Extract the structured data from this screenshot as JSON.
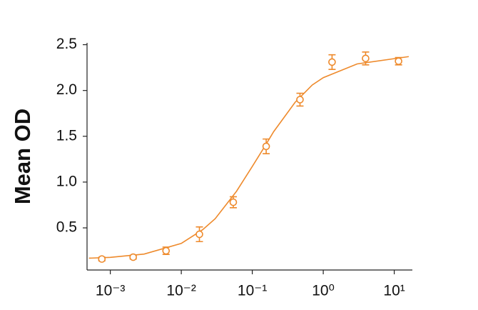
{
  "chart_data": {
    "type": "scatter",
    "y_label": "Mean OD",
    "log_x": true,
    "color": "#ee8a2c",
    "x": [
      0.00076,
      0.0021,
      0.0061,
      0.018,
      0.054,
      0.157,
      0.47,
      1.33,
      3.95,
      11.5
    ],
    "values": [
      0.16,
      0.18,
      0.25,
      0.43,
      0.78,
      1.39,
      1.9,
      2.31,
      2.35,
      2.32
    ],
    "errors": [
      0.02,
      0.02,
      0.04,
      0.08,
      0.06,
      0.08,
      0.07,
      0.08,
      0.07,
      0.04
    ],
    "curve": {
      "x": [
        0.0005,
        0.001,
        0.003,
        0.01,
        0.02,
        0.03,
        0.06,
        0.1,
        0.15,
        0.2,
        0.4,
        0.7,
        1,
        3,
        16
      ],
      "values": [
        0.169,
        0.178,
        0.214,
        0.33,
        0.48,
        0.6,
        0.9,
        1.17,
        1.39,
        1.55,
        1.87,
        2.06,
        2.14,
        2.29,
        2.37
      ]
    },
    "xlim": [
      0.00047,
      18
    ],
    "ylim": [
      0.04,
      2.52
    ],
    "xticks": [
      {
        "value": 0.001,
        "label": "10⁻³"
      },
      {
        "value": 0.01,
        "label": "10⁻²"
      },
      {
        "value": 0.1,
        "label": "10⁻¹"
      },
      {
        "value": 1,
        "label": "10⁰"
      },
      {
        "value": 10,
        "label": "10¹"
      }
    ],
    "yticks": [
      0.5,
      {
        "value": 1,
        "label": "1.0"
      },
      1.5,
      {
        "value": 2,
        "label": "2.0"
      },
      2.5
    ]
  }
}
